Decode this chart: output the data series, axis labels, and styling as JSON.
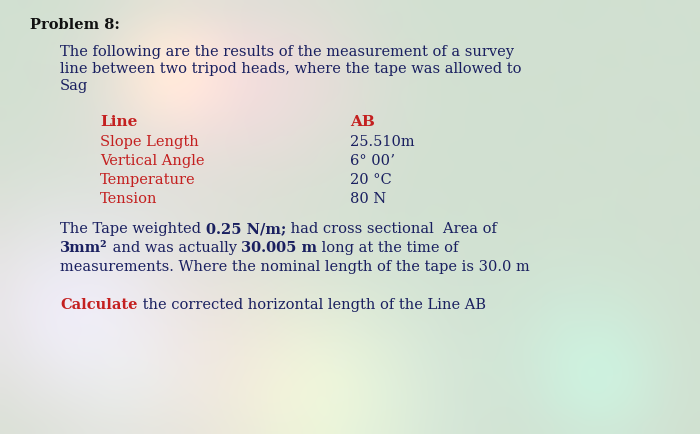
{
  "background_base": "#c8d8c8",
  "title": "Problem 8:",
  "intro_line1": "The following are the results of the measurement of a survey",
  "intro_line2": "line between two tripod heads, where the tape was allowed to",
  "intro_line3": "Sag",
  "table_header_left": "Line",
  "table_header_right": "AB",
  "table_rows_left": [
    "Slope Length",
    "Vertical Angle",
    "Temperature",
    "Tension"
  ],
  "table_rows_right": [
    "25.510m",
    "6° 00ʼ",
    "20 °C",
    "80 N"
  ],
  "para_line1_parts": [
    [
      "The Tape weighted ",
      false
    ],
    [
      "0.25 N/m;",
      true
    ],
    [
      " had cross sectional  Area of",
      false
    ]
  ],
  "para_line2_parts": [
    [
      "3mm²",
      true
    ],
    [
      " and was actually ",
      false
    ],
    [
      "30.005 m",
      true
    ],
    [
      " long at the time of",
      false
    ]
  ],
  "para_line3": "measurements. Where the nominal length of the tape is 30.0 m",
  "calc_label": "Calculate",
  "calc_rest": " the corrected horizontal length of the Line AB",
  "red_color": "#c42020",
  "dark_color": "#1a1a2e",
  "text_color": "#1a2060"
}
